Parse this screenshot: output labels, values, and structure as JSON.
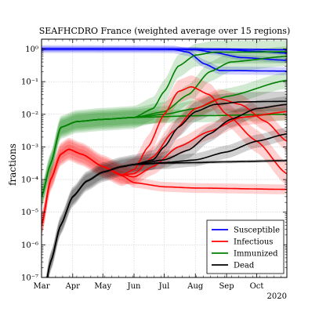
{
  "chart_data": {
    "type": "line",
    "title": "SEAFHCDRO France (weighted average over 15 regions)",
    "xlabel": "",
    "ylabel": "fractions",
    "yscale": "log",
    "ylim": [
      1e-07,
      2
    ],
    "xlim": [
      "2020-03-01",
      "2020-10-31"
    ],
    "x_ticks": [
      "Mar",
      "Apr",
      "May",
      "Jun",
      "Jul",
      "Aug",
      "Sep",
      "Oct"
    ],
    "x_tick_dates": [
      "2020-03-01",
      "2020-04-01",
      "2020-05-01",
      "2020-06-01",
      "2020-07-01",
      "2020-08-01",
      "2020-09-01",
      "2020-10-01"
    ],
    "x_offset_label": "2020",
    "y_ticks": [
      {
        "value": 1e-07,
        "label": "10⁻⁷"
      },
      {
        "value": 1e-06,
        "label": "10⁻⁶"
      },
      {
        "value": 1e-05,
        "label": "10⁻⁵"
      },
      {
        "value": 0.0001,
        "label": "10⁻⁴"
      },
      {
        "value": 0.001,
        "label": "10⁻³"
      },
      {
        "value": 0.01,
        "label": "10⁻²"
      },
      {
        "value": 0.1,
        "label": "10⁻¹"
      },
      {
        "value": 1,
        "label": "10⁰"
      }
    ],
    "grid": true,
    "legend_position": "bottom-right",
    "legend": [
      {
        "label": "Susceptible",
        "color": "#0000ff"
      },
      {
        "label": "Infectious",
        "color": "#ff0000"
      },
      {
        "label": "Immunized",
        "color": "#008000"
      },
      {
        "label": "Dead",
        "color": "#000000"
      }
    ],
    "series": [
      {
        "legend_index": 0,
        "color": "#0000ff",
        "scenario": 1,
        "band": 0.12,
        "points": [
          [
            "2020-03-01",
            0.999
          ],
          [
            "2020-06-01",
            0.99
          ],
          [
            "2020-07-10",
            0.97
          ],
          [
            "2020-07-25",
            0.8
          ],
          [
            "2020-08-10",
            0.35
          ],
          [
            "2020-08-25",
            0.22
          ],
          [
            "2020-10-31",
            0.21
          ]
        ]
      },
      {
        "legend_index": 0,
        "color": "#0000ff",
        "scenario": 2,
        "band": 0.08,
        "points": [
          [
            "2020-03-01",
            0.999
          ],
          [
            "2020-07-10",
            0.99
          ],
          [
            "2020-08-01",
            0.95
          ],
          [
            "2020-08-20",
            0.78
          ],
          [
            "2020-09-15",
            0.55
          ],
          [
            "2020-10-31",
            0.45
          ]
        ]
      },
      {
        "legend_index": 0,
        "color": "#0000ff",
        "scenario": 3,
        "band": 0.06,
        "points": [
          [
            "2020-03-01",
            0.999
          ],
          [
            "2020-08-01",
            0.99
          ],
          [
            "2020-09-01",
            0.95
          ],
          [
            "2020-10-01",
            0.85
          ],
          [
            "2020-10-31",
            0.75
          ]
        ]
      },
      {
        "legend_index": 0,
        "color": "#0000ff",
        "scenario": 4,
        "band": 0.04,
        "points": [
          [
            "2020-03-01",
            0.999
          ],
          [
            "2020-09-01",
            0.99
          ],
          [
            "2020-10-31",
            0.95
          ]
        ]
      },
      {
        "legend_index": 2,
        "color": "#008000",
        "scenario": 1,
        "band": 0.35,
        "points": [
          [
            "2020-03-01",
            3e-05
          ],
          [
            "2020-03-10",
            0.0003
          ],
          [
            "2020-03-20",
            0.004
          ],
          [
            "2020-04-05",
            0.006
          ],
          [
            "2020-05-01",
            0.007
          ],
          [
            "2020-06-01",
            0.008
          ],
          [
            "2020-06-20",
            0.015
          ],
          [
            "2020-07-01",
            0.05
          ],
          [
            "2020-07-15",
            0.3
          ],
          [
            "2020-08-01",
            0.65
          ],
          [
            "2020-08-20",
            0.8
          ],
          [
            "2020-10-31",
            0.82
          ]
        ]
      },
      {
        "legend_index": 2,
        "color": "#008000",
        "scenario": 2,
        "band": 0.3,
        "points": [
          [
            "2020-03-01",
            3e-05
          ],
          [
            "2020-03-10",
            0.0003
          ],
          [
            "2020-03-20",
            0.004
          ],
          [
            "2020-04-05",
            0.006
          ],
          [
            "2020-05-01",
            0.007
          ],
          [
            "2020-06-01",
            0.008
          ],
          [
            "2020-07-01",
            0.012
          ],
          [
            "2020-07-25",
            0.04
          ],
          [
            "2020-08-15",
            0.2
          ],
          [
            "2020-09-05",
            0.4
          ],
          [
            "2020-10-31",
            0.6
          ]
        ]
      },
      {
        "legend_index": 2,
        "color": "#008000",
        "scenario": 3,
        "band": 0.25,
        "points": [
          [
            "2020-03-01",
            3e-05
          ],
          [
            "2020-03-10",
            0.0003
          ],
          [
            "2020-03-20",
            0.004
          ],
          [
            "2020-04-05",
            0.006
          ],
          [
            "2020-05-01",
            0.007
          ],
          [
            "2020-06-01",
            0.008
          ],
          [
            "2020-07-01",
            0.01
          ],
          [
            "2020-08-01",
            0.015
          ],
          [
            "2020-09-01",
            0.035
          ],
          [
            "2020-10-31",
            0.11
          ]
        ]
      },
      {
        "legend_index": 2,
        "color": "#008000",
        "scenario": 4,
        "band": 0.2,
        "points": [
          [
            "2020-03-01",
            3e-05
          ],
          [
            "2020-03-10",
            0.0003
          ],
          [
            "2020-03-20",
            0.004
          ],
          [
            "2020-04-05",
            0.006
          ],
          [
            "2020-05-01",
            0.007
          ],
          [
            "2020-06-01",
            0.008
          ],
          [
            "2020-08-01",
            0.009
          ],
          [
            "2020-10-31",
            0.01
          ]
        ]
      },
      {
        "legend_index": 1,
        "color": "#ff0000",
        "scenario": 1,
        "band": 0.35,
        "points": [
          [
            "2020-03-01",
            4e-06
          ],
          [
            "2020-03-10",
            0.0001
          ],
          [
            "2020-03-20",
            0.0006
          ],
          [
            "2020-03-28",
            0.00085
          ],
          [
            "2020-04-10",
            0.0006
          ],
          [
            "2020-05-01",
            0.00025
          ],
          [
            "2020-05-20",
            0.00014
          ],
          [
            "2020-06-01",
            0.0002
          ],
          [
            "2020-06-15",
            0.001
          ],
          [
            "2020-07-01",
            0.01
          ],
          [
            "2020-07-15",
            0.05
          ],
          [
            "2020-07-28",
            0.07
          ],
          [
            "2020-08-15",
            0.04
          ],
          [
            "2020-09-01",
            0.01
          ],
          [
            "2020-10-01",
            0.0015
          ],
          [
            "2020-10-31",
            0.00015
          ]
        ]
      },
      {
        "legend_index": 1,
        "color": "#ff0000",
        "scenario": 2,
        "band": 0.3,
        "points": [
          [
            "2020-03-01",
            4e-06
          ],
          [
            "2020-03-10",
            0.0001
          ],
          [
            "2020-03-20",
            0.0006
          ],
          [
            "2020-03-28",
            0.00085
          ],
          [
            "2020-04-10",
            0.0006
          ],
          [
            "2020-05-01",
            0.00025
          ],
          [
            "2020-05-20",
            0.00014
          ],
          [
            "2020-06-01",
            0.00015
          ],
          [
            "2020-06-20",
            0.0005
          ],
          [
            "2020-07-10",
            0.003
          ],
          [
            "2020-08-01",
            0.015
          ],
          [
            "2020-08-25",
            0.03
          ],
          [
            "2020-09-15",
            0.02
          ],
          [
            "2020-10-10",
            0.006
          ],
          [
            "2020-10-31",
            0.0015
          ]
        ]
      },
      {
        "legend_index": 1,
        "color": "#ff0000",
        "scenario": 3,
        "band": 0.25,
        "points": [
          [
            "2020-03-01",
            4e-06
          ],
          [
            "2020-03-10",
            0.0001
          ],
          [
            "2020-03-20",
            0.0006
          ],
          [
            "2020-03-28",
            0.00085
          ],
          [
            "2020-04-10",
            0.0006
          ],
          [
            "2020-05-01",
            0.00025
          ],
          [
            "2020-05-20",
            0.00014
          ],
          [
            "2020-06-01",
            0.00012
          ],
          [
            "2020-06-20",
            0.00025
          ],
          [
            "2020-07-15",
            0.001
          ],
          [
            "2020-08-15",
            0.003
          ],
          [
            "2020-09-15",
            0.008
          ],
          [
            "2020-10-31",
            0.012
          ]
        ]
      },
      {
        "legend_index": 1,
        "color": "#ff0000",
        "scenario": 4,
        "band": 0.15,
        "points": [
          [
            "2020-03-01",
            4e-06
          ],
          [
            "2020-03-10",
            0.0001
          ],
          [
            "2020-03-20",
            0.0006
          ],
          [
            "2020-03-28",
            0.00085
          ],
          [
            "2020-04-10",
            0.0006
          ],
          [
            "2020-05-01",
            0.00025
          ],
          [
            "2020-05-20",
            0.00013
          ],
          [
            "2020-06-01",
            8e-05
          ],
          [
            "2020-07-01",
            6e-05
          ],
          [
            "2020-08-01",
            5.5e-05
          ],
          [
            "2020-10-31",
            5e-05
          ]
        ]
      },
      {
        "legend_index": 3,
        "color": "#000000",
        "scenario": 1,
        "band": 0.3,
        "points": [
          [
            "2020-03-01",
            1e-08
          ],
          [
            "2020-03-10",
            3e-07
          ],
          [
            "2020-03-20",
            4e-06
          ],
          [
            "2020-04-01",
            3e-05
          ],
          [
            "2020-04-15",
            9e-05
          ],
          [
            "2020-05-01",
            0.00017
          ],
          [
            "2020-05-20",
            0.00025
          ],
          [
            "2020-06-01",
            0.00029
          ],
          [
            "2020-06-20",
            0.0004
          ],
          [
            "2020-07-01",
            0.001
          ],
          [
            "2020-07-15",
            0.004
          ],
          [
            "2020-08-01",
            0.012
          ],
          [
            "2020-08-20",
            0.02
          ],
          [
            "2020-09-15",
            0.024
          ],
          [
            "2020-10-31",
            0.025
          ]
        ]
      },
      {
        "legend_index": 3,
        "color": "#000000",
        "scenario": 2,
        "band": 0.25,
        "points": [
          [
            "2020-03-01",
            1e-08
          ],
          [
            "2020-03-10",
            3e-07
          ],
          [
            "2020-03-20",
            4e-06
          ],
          [
            "2020-04-01",
            3e-05
          ],
          [
            "2020-04-15",
            9e-05
          ],
          [
            "2020-05-01",
            0.00017
          ],
          [
            "2020-05-20",
            0.00025
          ],
          [
            "2020-06-01",
            0.00029
          ],
          [
            "2020-07-01",
            0.0004
          ],
          [
            "2020-07-25",
            0.0008
          ],
          [
            "2020-08-15",
            0.0025
          ],
          [
            "2020-09-05",
            0.007
          ],
          [
            "2020-10-01",
            0.015
          ],
          [
            "2020-10-31",
            0.02
          ]
        ]
      },
      {
        "legend_index": 3,
        "color": "#000000",
        "scenario": 3,
        "band": 0.2,
        "points": [
          [
            "2020-03-01",
            1e-08
          ],
          [
            "2020-03-10",
            3e-07
          ],
          [
            "2020-03-20",
            4e-06
          ],
          [
            "2020-04-01",
            3e-05
          ],
          [
            "2020-04-15",
            9e-05
          ],
          [
            "2020-05-01",
            0.00017
          ],
          [
            "2020-05-20",
            0.00025
          ],
          [
            "2020-06-01",
            0.00029
          ],
          [
            "2020-07-01",
            0.00033
          ],
          [
            "2020-08-01",
            0.0004
          ],
          [
            "2020-09-01",
            0.0007
          ],
          [
            "2020-10-01",
            0.0015
          ],
          [
            "2020-10-31",
            0.0025
          ]
        ]
      },
      {
        "legend_index": 3,
        "color": "#000000",
        "scenario": 4,
        "band": 0.05,
        "points": [
          [
            "2020-03-01",
            1e-08
          ],
          [
            "2020-03-10",
            3e-07
          ],
          [
            "2020-03-20",
            4e-06
          ],
          [
            "2020-04-01",
            3e-05
          ],
          [
            "2020-04-15",
            9e-05
          ],
          [
            "2020-05-01",
            0.00017
          ],
          [
            "2020-05-20",
            0.00025
          ],
          [
            "2020-06-01",
            0.00029
          ],
          [
            "2020-07-01",
            0.00032
          ],
          [
            "2020-08-01",
            0.00033
          ],
          [
            "2020-09-01",
            0.00035
          ],
          [
            "2020-10-31",
            0.00038
          ]
        ]
      }
    ]
  }
}
